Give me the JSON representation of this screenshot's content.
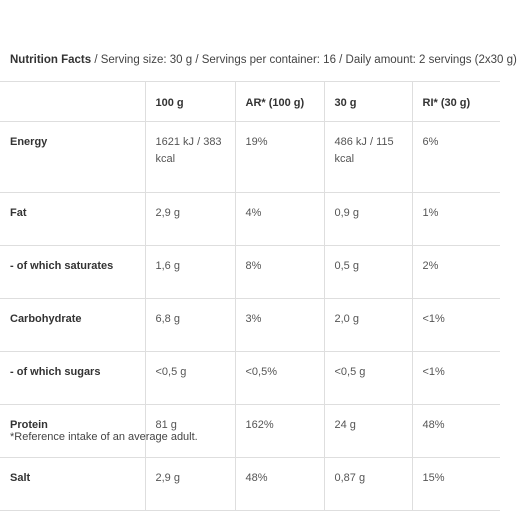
{
  "caption": {
    "title": "Nutrition Facts",
    "details": " / Serving size: 30 g / Servings per container: 16 / Daily amount: 2 servings (2x30 g)"
  },
  "table": {
    "headers": [
      "",
      "100 g",
      "AR* (100 g)",
      "30 g",
      "RI* (30 g)"
    ],
    "rows": [
      [
        "Energy",
        "1621 kJ / 383 kcal",
        "19%",
        "486 kJ / 115 kcal",
        "6%"
      ],
      [
        "Fat",
        "2,9 g",
        "4%",
        "0,9 g",
        "1%"
      ],
      [
        "- of which saturates",
        "1,6 g",
        "8%",
        "0,5 g",
        "2%"
      ],
      [
        "Carbohydrate",
        "6,8 g",
        "3%",
        "2,0 g",
        "<1%"
      ],
      [
        "- of which sugars",
        "<0,5 g",
        "<0,5%",
        "<0,5 g",
        "<1%"
      ],
      [
        "Protein",
        "81 g",
        "162%",
        "24 g",
        "48%"
      ],
      [
        "Salt",
        "2,9 g",
        "48%",
        "0,87 g",
        "15%"
      ]
    ]
  },
  "footnote": "*Reference intake of an average adult."
}
